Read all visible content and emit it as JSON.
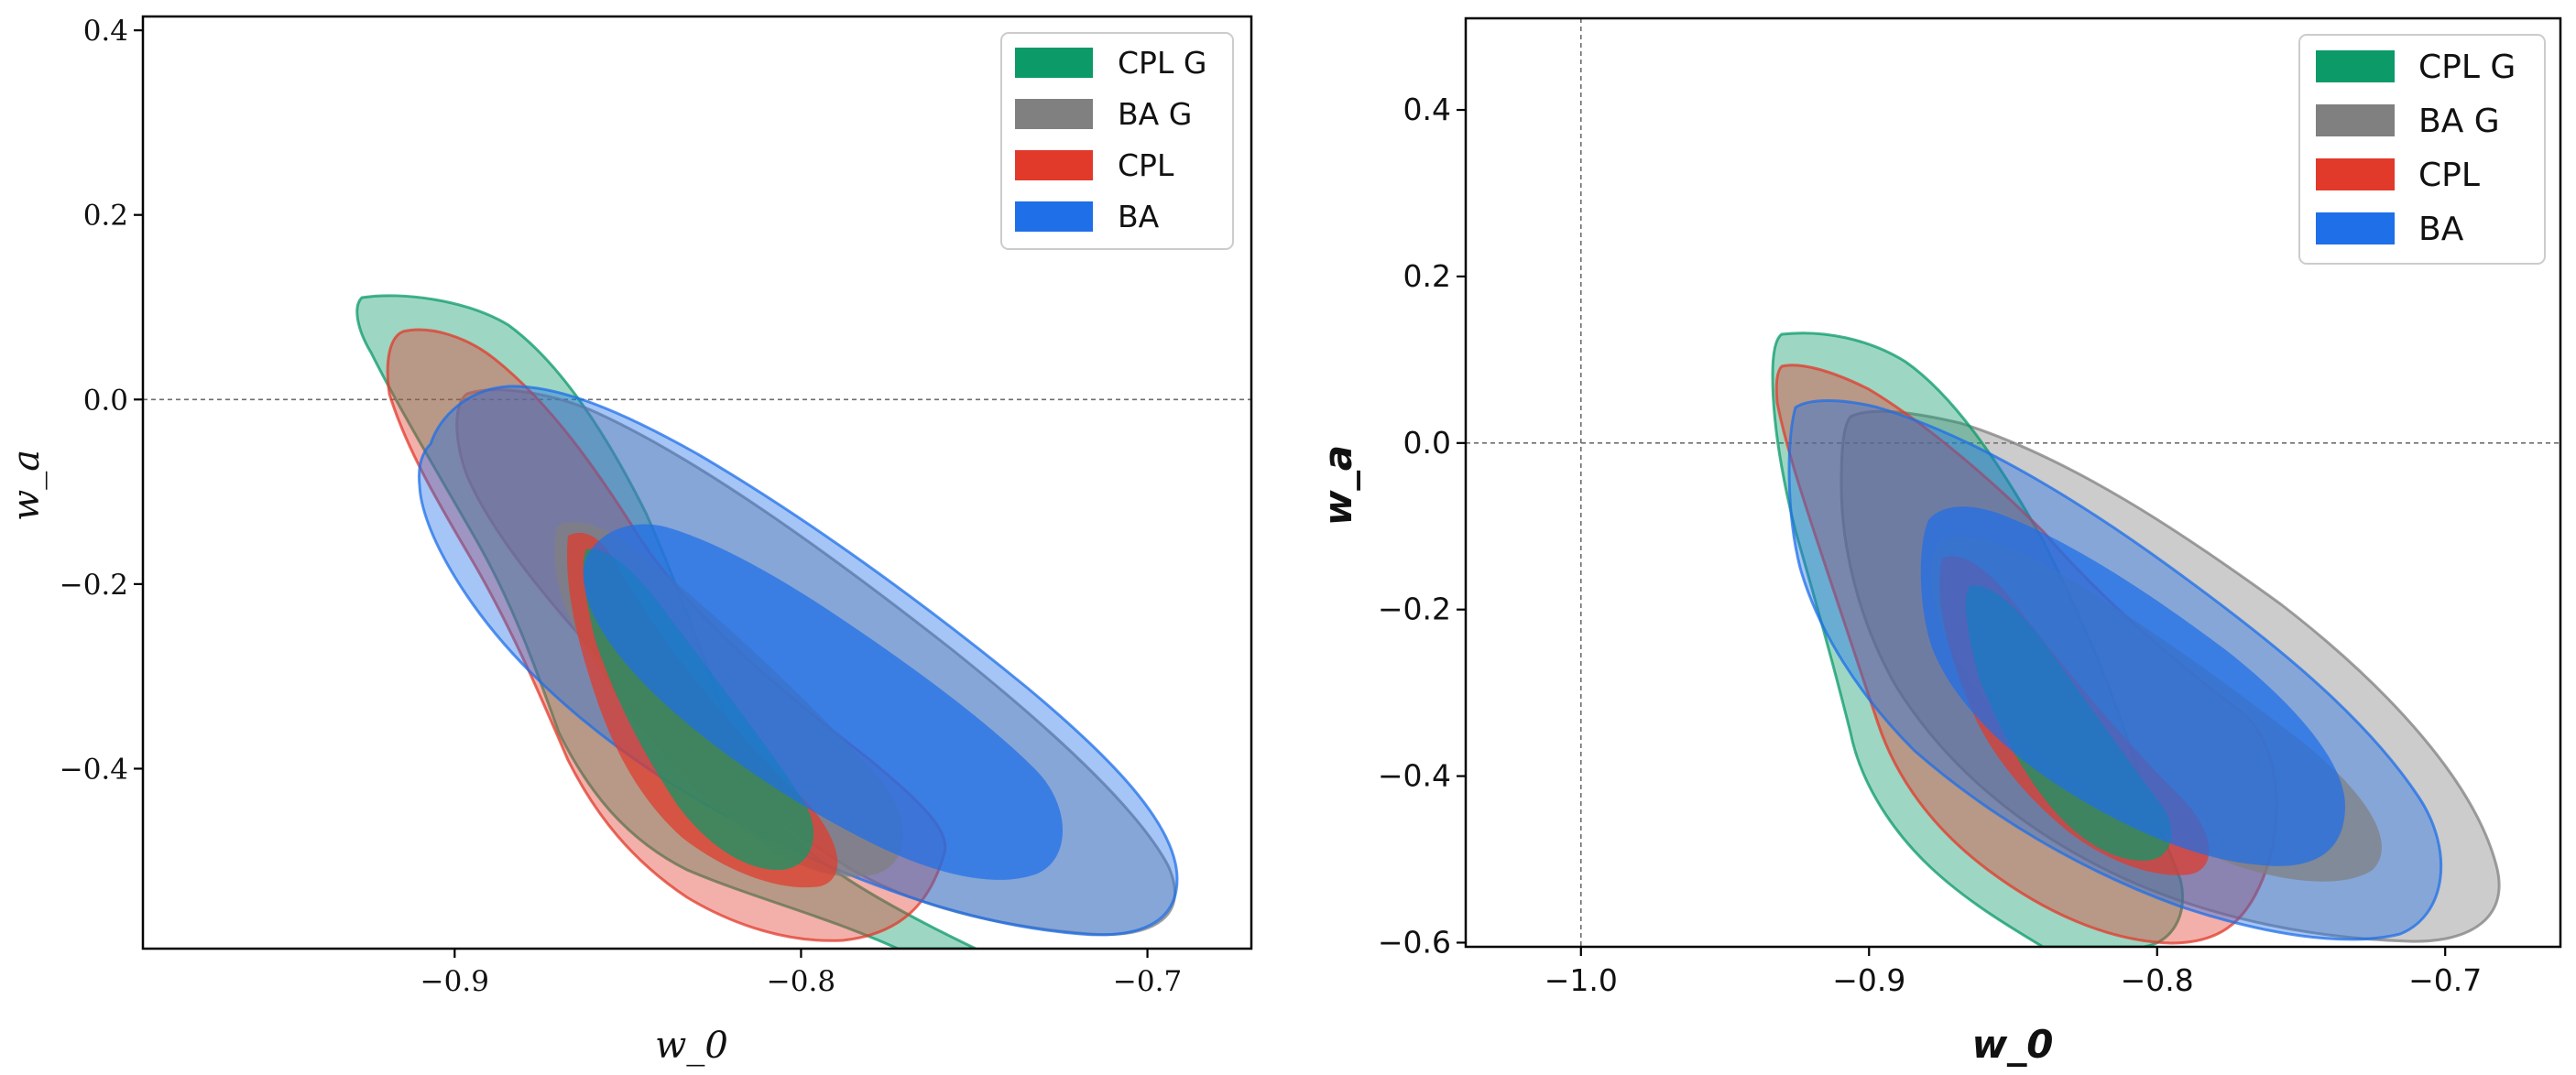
{
  "colors": {
    "cpl_g": "#0b9a68",
    "ba_g": "#808080",
    "cpl": "#e13a2b",
    "ba": "#1e6fe8"
  },
  "chart_data": [
    {
      "type": "contour",
      "panel": "left",
      "xlabel": "w_0",
      "ylabel": "w_a",
      "xlim": [
        -0.99,
        -0.67
      ],
      "ylim": [
        -0.595,
        0.415
      ],
      "xticks": [
        -0.9,
        -0.8,
        -0.7
      ],
      "yticks": [
        0.4,
        0.2,
        0.0,
        -0.2,
        -0.4
      ],
      "xtick_labels": [
        "−0.9",
        "−0.8",
        "−0.7"
      ],
      "ytick_labels": [
        "0.4",
        "0.2",
        "0.0",
        "−0.2",
        "−0.4"
      ],
      "reference_lines": {
        "w_a": 0.0
      },
      "legend": {
        "location": "top-right",
        "entries": [
          "CPL G",
          "BA G",
          "CPL",
          "BA"
        ]
      },
      "series": [
        {
          "name": "CPL G",
          "color_key": "cpl_g",
          "levels": [
            "1-sigma",
            "2-sigma"
          ],
          "center": [
            -0.815,
            -0.32
          ],
          "w0_range_2sigma": [
            -0.928,
            -0.76
          ],
          "wa_range_2sigma": [
            -0.59,
            0.11
          ]
        },
        {
          "name": "BA G",
          "color_key": "ba_g",
          "levels": [
            "1-sigma",
            "2-sigma"
          ],
          "center": [
            -0.81,
            -0.34
          ],
          "w0_range_2sigma": [
            -0.89,
            -0.705
          ],
          "wa_range_2sigma": [
            -0.585,
            -0.01
          ]
        },
        {
          "name": "CPL",
          "color_key": "cpl",
          "levels": [
            "1-sigma",
            "2-sigma"
          ],
          "center": [
            -0.83,
            -0.38
          ],
          "w0_range_2sigma": [
            -0.92,
            -0.765
          ],
          "wa_range_2sigma": [
            -0.59,
            0.07
          ]
        },
        {
          "name": "BA",
          "color_key": "ba",
          "levels": [
            "1-sigma",
            "2-sigma"
          ],
          "center": [
            -0.81,
            -0.33
          ],
          "w0_range_2sigma": [
            -0.905,
            -0.7
          ],
          "wa_range_2sigma": [
            -0.595,
            0.01
          ]
        }
      ]
    },
    {
      "type": "contour",
      "panel": "right",
      "xlabel": "w_0",
      "ylabel": "w_a",
      "xlim": [
        -1.04,
        -0.66
      ],
      "ylim": [
        -0.605,
        0.51
      ],
      "xticks": [
        -1.0,
        -0.9,
        -0.8,
        -0.7
      ],
      "yticks": [
        0.4,
        0.2,
        0.0,
        -0.2,
        -0.4,
        -0.6
      ],
      "xtick_labels": [
        "−1.0",
        "−0.9",
        "−0.8",
        "−0.7"
      ],
      "ytick_labels": [
        "0.4",
        "0.2",
        "0.0",
        "−0.2",
        "−0.4",
        "−0.6"
      ],
      "reference_lines": {
        "w_a": 0.0,
        "w_0": -1.0
      },
      "legend": {
        "location": "top-right",
        "entries": [
          "CPL G",
          "BA G",
          "CPL",
          "BA"
        ]
      },
      "series": [
        {
          "name": "CPL G",
          "color_key": "cpl_g",
          "levels": [
            "1-sigma",
            "2-sigma"
          ],
          "center": [
            -0.82,
            -0.33
          ],
          "w0_range_2sigma": [
            -0.933,
            -0.765
          ],
          "wa_range_2sigma": [
            -0.6,
            0.125
          ]
        },
        {
          "name": "BA G",
          "color_key": "ba_g",
          "levels": [
            "1-sigma",
            "2-sigma"
          ],
          "center": [
            -0.8,
            -0.33
          ],
          "w0_range_2sigma": [
            -0.9,
            -0.69
          ],
          "wa_range_2sigma": [
            -0.595,
            0.03
          ]
        },
        {
          "name": "CPL",
          "color_key": "cpl",
          "levels": [
            "1-sigma",
            "2-sigma"
          ],
          "center": [
            -0.83,
            -0.34
          ],
          "w0_range_2sigma": [
            -0.933,
            -0.765
          ],
          "wa_range_2sigma": [
            -0.6,
            0.09
          ]
        },
        {
          "name": "BA",
          "color_key": "ba",
          "levels": [
            "1-sigma",
            "2-sigma"
          ],
          "center": [
            -0.81,
            -0.33
          ],
          "w0_range_2sigma": [
            -0.93,
            -0.71
          ],
          "wa_range_2sigma": [
            -0.595,
            0.05
          ]
        }
      ]
    }
  ]
}
